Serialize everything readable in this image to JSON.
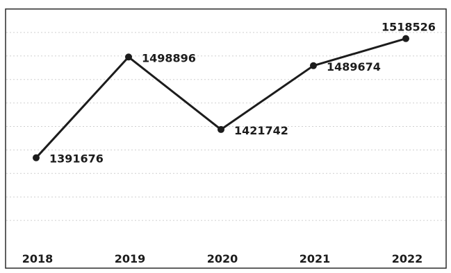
{
  "chart_data": {
    "type": "line",
    "title": "",
    "xlabel": "",
    "ylabel": "",
    "categories": [
      "2018",
      "2019",
      "2020",
      "2021",
      "2022"
    ],
    "series": [
      {
        "values": [
          1391676,
          1498896,
          1421742,
          1489674,
          1518526
        ]
      }
    ],
    "data_labels": [
      "1391676",
      "1498896",
      "1421742",
      "1489674",
      "1518526"
    ],
    "ylim": [
      1300000,
      1550000
    ],
    "grid": true,
    "legend": "none",
    "line_color": "#1c1c1c"
  }
}
